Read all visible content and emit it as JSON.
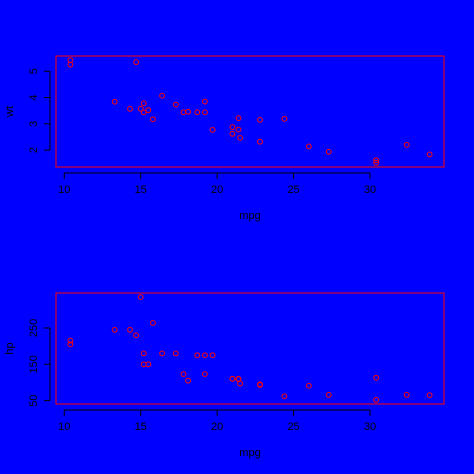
{
  "chart_data": [
    {
      "type": "scatter",
      "xlabel": "mpg",
      "ylabel": "wt",
      "color": "#ff0000",
      "x": [
        21,
        21,
        22.8,
        21.4,
        18.7,
        18.1,
        14.3,
        24.4,
        22.8,
        19.2,
        17.8,
        16.4,
        17.3,
        15.2,
        10.4,
        10.4,
        14.7,
        32.4,
        30.4,
        33.9,
        21.5,
        15.5,
        15.2,
        13.3,
        19.2,
        27.3,
        26,
        30.4,
        15.8,
        19.7,
        15,
        21.4
      ],
      "y": [
        2.62,
        2.875,
        2.32,
        3.215,
        3.44,
        3.46,
        3.57,
        3.19,
        3.15,
        3.44,
        3.44,
        4.07,
        3.73,
        3.78,
        5.25,
        5.424,
        5.345,
        2.2,
        1.615,
        1.835,
        2.465,
        3.52,
        3.435,
        3.84,
        3.845,
        1.935,
        2.14,
        1.513,
        3.17,
        2.77,
        3.57,
        2.78
      ],
      "xlim": [
        9.46,
        34.84
      ],
      "xticks": [
        10,
        15,
        20,
        25,
        30
      ],
      "ylim": [
        1.357,
        5.58
      ],
      "yticks": [
        2,
        3,
        4,
        5
      ]
    },
    {
      "type": "scatter",
      "xlabel": "mpg",
      "ylabel": "hp",
      "color": "#ff0000",
      "x": [
        21,
        21,
        22.8,
        21.4,
        18.7,
        18.1,
        14.3,
        24.4,
        22.8,
        19.2,
        17.8,
        16.4,
        17.3,
        15.2,
        10.4,
        10.4,
        14.7,
        32.4,
        30.4,
        33.9,
        21.5,
        15.5,
        15.2,
        13.3,
        19.2,
        27.3,
        26,
        30.4,
        15.8,
        19.7,
        15,
        21.4
      ],
      "y": [
        110,
        110,
        93,
        110,
        175,
        105,
        245,
        62,
        95,
        123,
        123,
        180,
        180,
        180,
        205,
        215,
        230,
        66,
        52,
        65,
        97,
        150,
        150,
        245,
        175,
        66,
        91,
        113,
        264,
        175,
        335,
        109
      ],
      "xlim": [
        9.46,
        34.84
      ],
      "xticks": [
        10,
        15,
        20,
        25,
        30
      ],
      "ylim": [
        40.68,
        346.32
      ],
      "yticks": [
        50,
        150,
        250
      ]
    }
  ]
}
